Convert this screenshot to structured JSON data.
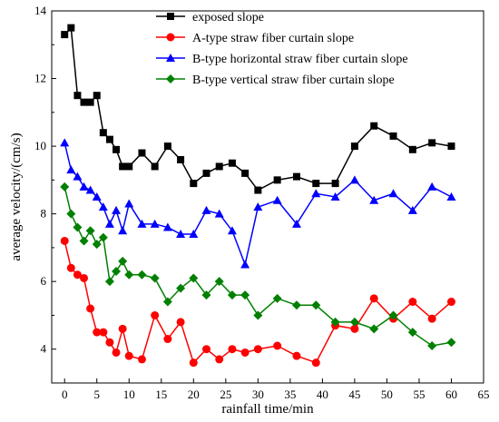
{
  "chart_data": {
    "type": "line",
    "xlabel": "rainfall time/min",
    "ylabel": "average velocity/(cm/s)",
    "xlim": [
      -2,
      65
    ],
    "ylim": [
      3,
      14
    ],
    "xticks": [
      0,
      5,
      10,
      15,
      20,
      25,
      30,
      35,
      40,
      45,
      50,
      55,
      60,
      65
    ],
    "yticks": [
      4,
      6,
      8,
      10,
      12,
      14
    ],
    "legend_position": "top-right",
    "series": [
      {
        "name": "exposed slope",
        "color": "#000000",
        "marker": "square",
        "x": [
          0,
          1,
          2,
          3,
          4,
          5,
          6,
          7,
          8,
          9,
          10,
          12,
          14,
          16,
          18,
          20,
          22,
          24,
          26,
          28,
          30,
          33,
          36,
          39,
          42,
          45,
          48,
          51,
          54,
          57,
          60
        ],
        "y": [
          13.3,
          13.5,
          11.5,
          11.3,
          11.3,
          11.5,
          10.4,
          10.2,
          9.9,
          9.4,
          9.4,
          9.8,
          9.4,
          10.0,
          9.6,
          8.9,
          9.2,
          9.4,
          9.5,
          9.2,
          8.7,
          9.0,
          9.1,
          8.9,
          8.9,
          10.0,
          10.6,
          10.3,
          9.9,
          10.1,
          10.0
        ]
      },
      {
        "name": "A-type straw fiber curtain slope",
        "color": "#ff0000",
        "marker": "circle",
        "x": [
          0,
          1,
          2,
          3,
          4,
          5,
          6,
          7,
          8,
          9,
          10,
          12,
          14,
          16,
          18,
          20,
          22,
          24,
          26,
          28,
          30,
          33,
          36,
          39,
          42,
          45,
          48,
          51,
          54,
          57,
          60
        ],
        "y": [
          7.2,
          6.4,
          6.2,
          6.1,
          5.2,
          4.5,
          4.5,
          4.2,
          3.9,
          4.6,
          3.8,
          3.7,
          5.0,
          4.3,
          4.8,
          3.6,
          4.0,
          3.7,
          4.0,
          3.9,
          4.0,
          4.1,
          3.8,
          3.6,
          4.7,
          4.6,
          5.5,
          4.9,
          5.4,
          4.9,
          5.4
        ]
      },
      {
        "name": "B-type horizontal straw fiber curtain slope",
        "color": "#0000ff",
        "marker": "triangle",
        "x": [
          0,
          1,
          2,
          3,
          4,
          5,
          6,
          7,
          8,
          9,
          10,
          12,
          14,
          16,
          18,
          20,
          22,
          24,
          26,
          28,
          30,
          33,
          36,
          39,
          42,
          45,
          48,
          51,
          54,
          57,
          60
        ],
        "y": [
          10.1,
          9.3,
          9.1,
          8.8,
          8.7,
          8.5,
          8.2,
          7.7,
          8.1,
          7.5,
          8.3,
          7.7,
          7.7,
          7.6,
          7.4,
          7.4,
          8.1,
          8.0,
          7.5,
          6.5,
          8.2,
          8.4,
          7.7,
          8.6,
          8.5,
          9.0,
          8.4,
          8.6,
          8.1,
          8.8,
          8.5
        ]
      },
      {
        "name": "B-type vertical straw fiber curtain slope",
        "color": "#008000",
        "marker": "diamond",
        "x": [
          0,
          1,
          2,
          3,
          4,
          5,
          6,
          7,
          8,
          9,
          10,
          12,
          14,
          16,
          18,
          20,
          22,
          24,
          26,
          28,
          30,
          33,
          36,
          39,
          42,
          45,
          48,
          51,
          54,
          57,
          60
        ],
        "y": [
          8.8,
          8.0,
          7.6,
          7.2,
          7.5,
          7.1,
          7.3,
          6.0,
          6.3,
          6.6,
          6.2,
          6.2,
          6.1,
          5.4,
          5.8,
          6.1,
          5.6,
          6.0,
          5.6,
          5.6,
          5.0,
          5.5,
          5.3,
          5.3,
          4.8,
          4.8,
          4.6,
          5.0,
          4.5,
          4.1,
          4.2
        ]
      }
    ]
  }
}
